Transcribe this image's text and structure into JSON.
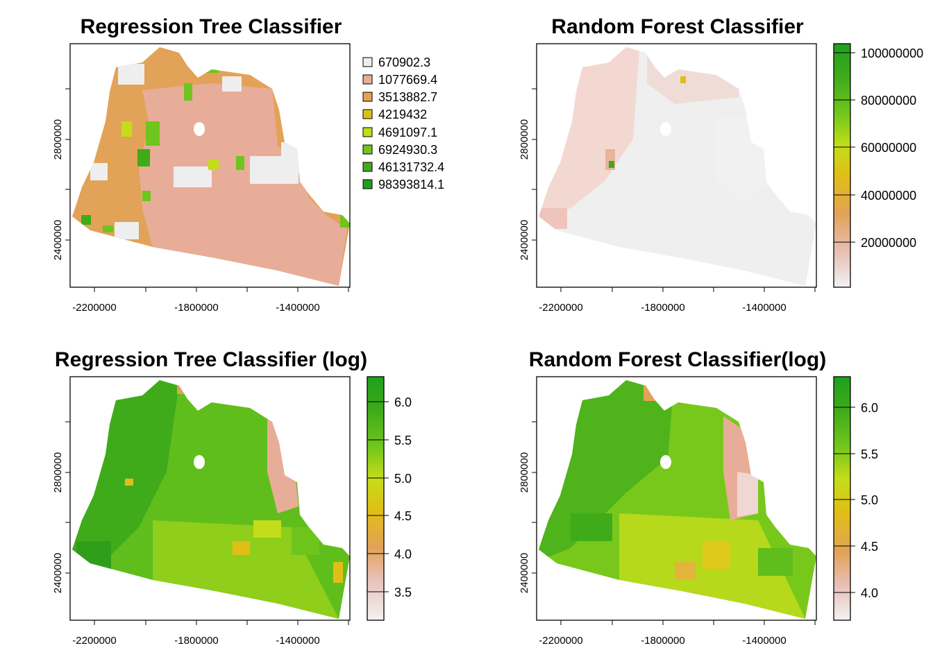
{
  "figure": {
    "panels": [
      {
        "title": "Regression Tree Classifier",
        "scale": "categorical",
        "x_ticks": [
          "-2200000",
          "-1800000",
          "-1400000"
        ],
        "y_ticks": [
          "2400000",
          "2800000"
        ],
        "legend": {
          "type": "categorical",
          "labels": [
            "670902.3",
            "1077669.4",
            "3513882.7",
            "4219432",
            "4691097.1",
            "6924930.3",
            "46131732.4",
            "98393814.1"
          ],
          "colors": [
            "#eeeeee",
            "#e8ad98",
            "#e2a257",
            "#e1be16",
            "#c4dd1a",
            "#6ec51c",
            "#3fab1b",
            "#1ea01c"
          ]
        }
      },
      {
        "title": "Random Forest Classifier",
        "scale": "continuous",
        "x_ticks": [
          "-2200000",
          "-1800000",
          "-1400000"
        ],
        "y_ticks": [
          "2400000",
          "2800000"
        ],
        "legend": {
          "type": "continuous",
          "labels": [
            "100000000",
            "80000000",
            "60000000",
            "40000000",
            "20000000"
          ],
          "range": [
            0,
            105000000
          ],
          "colors": [
            "#f2f2f2",
            "#e8c0b8",
            "#e2a257",
            "#e1be16",
            "#c4dd1a",
            "#6ec51c",
            "#3fab1b",
            "#1ea01c"
          ]
        }
      },
      {
        "title": "Regression Tree Classifier (log)",
        "scale": "continuous",
        "x_ticks": [
          "-2200000",
          "-1800000",
          "-1400000"
        ],
        "y_ticks": [
          "2400000",
          "2800000"
        ],
        "legend": {
          "type": "continuous",
          "labels": [
            "6.0",
            "5.5",
            "5.0",
            "4.5",
            "4.0",
            "3.5"
          ],
          "range": [
            3.1,
            6.35
          ],
          "colors": [
            "#f2f2f2",
            "#e8c0b8",
            "#e2a257",
            "#e1be16",
            "#c4dd1a",
            "#6ec51c",
            "#3fab1b",
            "#1ea01c"
          ]
        }
      },
      {
        "title": "Random Forest Classifier(log)",
        "scale": "continuous",
        "x_ticks": [
          "-2200000",
          "-1800000",
          "-1400000"
        ],
        "y_ticks": [
          "2400000",
          "2800000"
        ],
        "legend": {
          "type": "continuous",
          "labels": [
            "6.0",
            "5.5",
            "5.0",
            "4.5",
            "4.0"
          ],
          "range": [
            3.65,
            6.35
          ],
          "colors": [
            "#f2f2f2",
            "#e8c0b8",
            "#e2a257",
            "#e1be16",
            "#c4dd1a",
            "#6ec51c",
            "#3fab1b",
            "#1ea01c"
          ]
        }
      }
    ]
  }
}
